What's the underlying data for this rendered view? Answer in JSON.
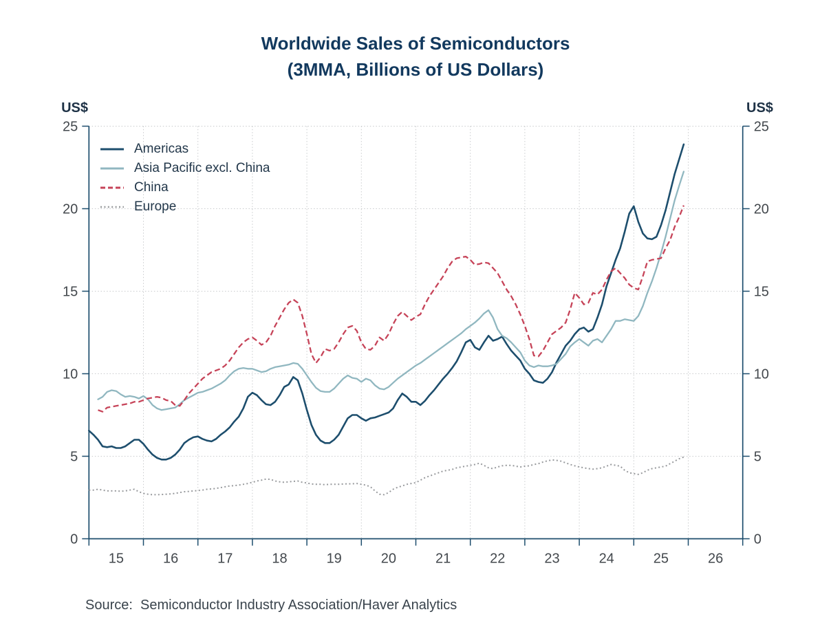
{
  "title": {
    "line1": "Worldwide Sales of Semiconductors",
    "line2": "(3MMA, Billions of US Dollars)"
  },
  "axes": {
    "left_unit": "US$",
    "right_unit": "US$",
    "y_ticks": [
      0,
      5,
      10,
      15,
      20,
      25
    ],
    "x_tick_years": [
      2015,
      2016,
      2017,
      2018,
      2019,
      2020,
      2021,
      2022,
      2023,
      2024,
      2025,
      2026,
      2027
    ],
    "x_labels": [
      "15",
      "16",
      "17",
      "18",
      "19",
      "20",
      "21",
      "22",
      "23",
      "24",
      "25",
      "26"
    ]
  },
  "legend": {
    "items": [
      {
        "label": "Americas",
        "color": "#1d4e6d",
        "dash": ""
      },
      {
        "label": "Asia Pacific excl. China",
        "color": "#90b7c0",
        "dash": ""
      },
      {
        "label": "China",
        "color": "#c64358",
        "dash": "7 4"
      },
      {
        "label": "Europe",
        "color": "#97999c",
        "dash": "2 3.4"
      }
    ]
  },
  "source": "Source:  Semiconductor Industry Association/Haver Analytics",
  "colors": {
    "axis": "#1d4d6d",
    "grid": "#c9cbcd",
    "tick_text": "#43484d",
    "title_text": "#12395e",
    "background": "#ffffff"
  },
  "chart_data": {
    "type": "line",
    "title": "Worldwide Sales of Semiconductors",
    "subtitle": "(3MMA, Billions of US Dollars)",
    "xlabel": "",
    "ylabel": "US$ (billions)",
    "x_axis": {
      "unit": "year",
      "tick_years": [
        2015,
        2016,
        2017,
        2018,
        2019,
        2020,
        2021,
        2022,
        2023,
        2024,
        2025,
        2026,
        2027
      ],
      "tick_labels": [
        "15",
        "16",
        "17",
        "18",
        "19",
        "20",
        "21",
        "22",
        "23",
        "24",
        "25",
        "26"
      ],
      "range": [
        2014.95,
        2027.0
      ]
    },
    "y_axis": {
      "ticks": [
        0,
        5,
        10,
        15,
        20,
        25
      ],
      "range": [
        0,
        25
      ],
      "mirrored_right": true
    },
    "grid": true,
    "legend_position": "top-left",
    "frequency": "monthly",
    "series": [
      {
        "name": "Americas",
        "color": "#1d4e6d",
        "line_style": "solid",
        "line_width": 2.6,
        "start_year": 2015.0,
        "interval_months": 1,
        "values": [
          6.55,
          6.3,
          6.0,
          5.6,
          5.55,
          5.6,
          5.5,
          5.5,
          5.6,
          5.8,
          6.0,
          6.0,
          5.75,
          5.4,
          5.1,
          4.9,
          4.8,
          4.8,
          4.9,
          5.1,
          5.4,
          5.8,
          6.0,
          6.15,
          6.2,
          6.05,
          5.95,
          5.9,
          6.05,
          6.3,
          6.5,
          6.75,
          7.1,
          7.4,
          7.9,
          8.6,
          8.85,
          8.7,
          8.4,
          8.15,
          8.1,
          8.3,
          8.7,
          9.2,
          9.35,
          9.8,
          9.6,
          8.8,
          7.8,
          6.9,
          6.3,
          5.95,
          5.8,
          5.8,
          6.0,
          6.3,
          6.8,
          7.3,
          7.5,
          7.5,
          7.3,
          7.15,
          7.3,
          7.35,
          7.45,
          7.55,
          7.65,
          7.9,
          8.4,
          8.8,
          8.6,
          8.3,
          8.3,
          8.1,
          8.35,
          8.7,
          9.0,
          9.35,
          9.7,
          10.0,
          10.35,
          10.75,
          11.3,
          11.9,
          12.05,
          11.6,
          11.45,
          11.9,
          12.3,
          12.0,
          12.1,
          12.25,
          11.8,
          11.4,
          11.1,
          10.8,
          10.3,
          10.0,
          9.6,
          9.5,
          9.45,
          9.7,
          10.1,
          10.7,
          11.2,
          11.7,
          12.0,
          12.4,
          12.7,
          12.8,
          12.55,
          12.7,
          13.4,
          14.2,
          15.3,
          16.1,
          16.9,
          17.6,
          18.6,
          19.7,
          20.15,
          19.2,
          18.5,
          18.2,
          18.15,
          18.3,
          19.0,
          19.9,
          21.0,
          22.1,
          23.0,
          23.9
        ]
      },
      {
        "name": "Asia Pacific excl. China",
        "color": "#90b7c0",
        "line_style": "solid",
        "line_width": 2.3,
        "start_year": 2015.1667,
        "interval_months": 1,
        "values": [
          8.45,
          8.6,
          8.9,
          9.0,
          8.95,
          8.75,
          8.6,
          8.65,
          8.6,
          8.5,
          8.65,
          8.45,
          8.1,
          7.9,
          7.8,
          7.85,
          7.9,
          7.95,
          8.15,
          8.4,
          8.55,
          8.7,
          8.85,
          8.9,
          9.0,
          9.1,
          9.25,
          9.4,
          9.6,
          9.9,
          10.15,
          10.3,
          10.35,
          10.3,
          10.3,
          10.2,
          10.1,
          10.15,
          10.3,
          10.4,
          10.45,
          10.5,
          10.55,
          10.65,
          10.6,
          10.3,
          9.9,
          9.5,
          9.15,
          8.95,
          8.9,
          8.9,
          9.1,
          9.4,
          9.7,
          9.9,
          9.75,
          9.7,
          9.5,
          9.7,
          9.6,
          9.3,
          9.1,
          9.05,
          9.2,
          9.45,
          9.7,
          9.9,
          10.1,
          10.3,
          10.5,
          10.65,
          10.85,
          11.05,
          11.25,
          11.45,
          11.65,
          11.85,
          12.05,
          12.25,
          12.45,
          12.7,
          12.9,
          13.1,
          13.35,
          13.65,
          13.85,
          13.4,
          12.7,
          12.3,
          12.15,
          11.9,
          11.6,
          11.3,
          10.8,
          10.5,
          10.4,
          10.5,
          10.45,
          10.45,
          10.5,
          10.6,
          10.9,
          11.2,
          11.65,
          11.9,
          12.1,
          11.9,
          11.7,
          12.0,
          12.1,
          11.9,
          12.3,
          12.7,
          13.2,
          13.2,
          13.3,
          13.25,
          13.2,
          13.5,
          14.1,
          14.9,
          15.6,
          16.4,
          17.3,
          18.3,
          19.4,
          20.5,
          21.4,
          22.25
        ]
      },
      {
        "name": "China",
        "color": "#c64358",
        "line_style": "dashed",
        "line_width": 2.3,
        "start_year": 2015.1667,
        "interval_months": 1,
        "values": [
          7.8,
          7.7,
          7.95,
          8.0,
          8.05,
          8.1,
          8.15,
          8.2,
          8.3,
          8.3,
          8.4,
          8.5,
          8.55,
          8.6,
          8.55,
          8.4,
          8.35,
          8.1,
          8.05,
          8.4,
          8.8,
          9.1,
          9.4,
          9.7,
          9.9,
          10.1,
          10.2,
          10.3,
          10.5,
          10.8,
          11.2,
          11.6,
          11.9,
          12.1,
          12.2,
          12.0,
          11.75,
          11.9,
          12.3,
          12.9,
          13.4,
          13.9,
          14.3,
          14.5,
          14.3,
          13.5,
          12.4,
          11.2,
          10.65,
          11.0,
          11.5,
          11.4,
          11.5,
          11.9,
          12.4,
          12.8,
          12.9,
          12.6,
          11.9,
          11.5,
          11.45,
          11.7,
          12.2,
          12.0,
          12.4,
          13.0,
          13.5,
          13.75,
          13.5,
          13.25,
          13.45,
          13.6,
          14.2,
          14.7,
          15.1,
          15.5,
          15.9,
          16.4,
          16.8,
          17.0,
          17.05,
          17.1,
          16.9,
          16.6,
          16.65,
          16.75,
          16.7,
          16.4,
          16.1,
          15.6,
          15.1,
          14.7,
          14.2,
          13.6,
          12.9,
          12.1,
          11.1,
          11.05,
          11.4,
          11.9,
          12.4,
          12.6,
          12.8,
          13.1,
          13.9,
          14.9,
          14.6,
          14.2,
          14.3,
          14.9,
          14.8,
          15.1,
          15.7,
          16.2,
          16.4,
          16.1,
          15.8,
          15.4,
          15.2,
          15.1,
          15.9,
          16.8,
          16.9,
          16.95,
          17.0,
          17.6,
          18.1,
          18.9,
          19.5,
          20.2
        ]
      },
      {
        "name": "Europe",
        "color": "#97999c",
        "line_style": "dotted",
        "line_width": 2.0,
        "start_year": 2015.0,
        "interval_months": 1,
        "values": [
          2.95,
          2.95,
          3.0,
          2.95,
          2.9,
          2.9,
          2.9,
          2.88,
          2.9,
          2.95,
          3.0,
          2.85,
          2.75,
          2.7,
          2.67,
          2.67,
          2.68,
          2.7,
          2.72,
          2.75,
          2.8,
          2.85,
          2.87,
          2.9,
          2.92,
          2.95,
          3.0,
          3.02,
          3.05,
          3.1,
          3.15,
          3.2,
          3.22,
          3.25,
          3.3,
          3.35,
          3.42,
          3.5,
          3.55,
          3.62,
          3.6,
          3.5,
          3.45,
          3.42,
          3.45,
          3.48,
          3.5,
          3.42,
          3.38,
          3.32,
          3.3,
          3.3,
          3.28,
          3.3,
          3.3,
          3.3,
          3.32,
          3.33,
          3.33,
          3.35,
          3.3,
          3.25,
          3.15,
          2.9,
          2.7,
          2.67,
          2.8,
          3.0,
          3.12,
          3.2,
          3.3,
          3.35,
          3.4,
          3.55,
          3.7,
          3.8,
          3.9,
          4.0,
          4.1,
          4.15,
          4.2,
          4.3,
          4.35,
          4.4,
          4.45,
          4.5,
          4.58,
          4.45,
          4.3,
          4.25,
          4.35,
          4.42,
          4.45,
          4.45,
          4.4,
          4.35,
          4.4,
          4.42,
          4.5,
          4.55,
          4.65,
          4.72,
          4.78,
          4.75,
          4.7,
          4.6,
          4.5,
          4.42,
          4.35,
          4.3,
          4.25,
          4.22,
          4.25,
          4.3,
          4.4,
          4.5,
          4.45,
          4.4,
          4.15,
          4.0,
          3.95,
          3.9,
          4.0,
          4.15,
          4.25,
          4.3,
          4.35,
          4.4,
          4.55,
          4.7,
          4.85,
          4.95
        ]
      }
    ]
  }
}
